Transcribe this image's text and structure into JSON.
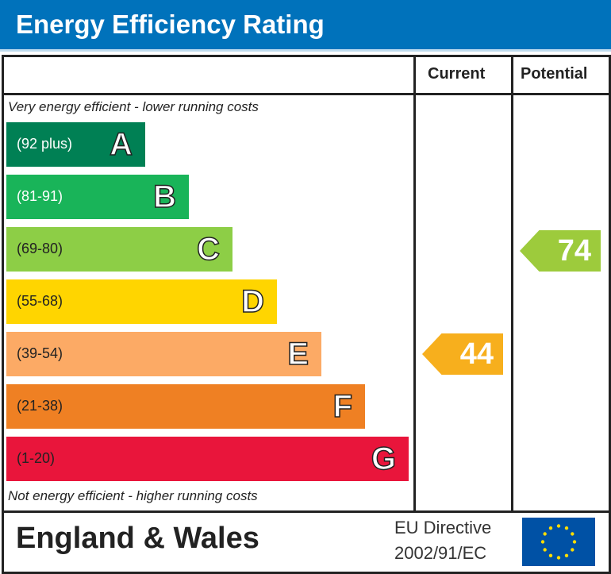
{
  "header": {
    "title": "Energy Efficiency Rating"
  },
  "columns": {
    "current": "Current",
    "potential": "Potential"
  },
  "notes": {
    "top": "Very energy efficient - lower running costs",
    "bottom": "Not energy efficient - higher running costs"
  },
  "footer": {
    "region": "England & Wales",
    "directive_line1": "EU Directive",
    "directive_line2": "2002/91/EC"
  },
  "chart_data": {
    "type": "bar",
    "bands": [
      {
        "letter": "A",
        "range": "(92 plus)",
        "color": "#008054",
        "text_color": "#ffffff"
      },
      {
        "letter": "B",
        "range": "(81-91)",
        "color": "#19b459",
        "text_color": "#ffffff"
      },
      {
        "letter": "C",
        "range": "(69-80)",
        "color": "#8dce46",
        "text_color": "#222222"
      },
      {
        "letter": "D",
        "range": "(55-68)",
        "color": "#ffd500",
        "text_color": "#222222"
      },
      {
        "letter": "E",
        "range": "(39-54)",
        "color": "#fcaa65",
        "text_color": "#222222"
      },
      {
        "letter": "F",
        "range": "(21-38)",
        "color": "#ef8023",
        "text_color": "#222222"
      },
      {
        "letter": "G",
        "range": "(1-20)",
        "color": "#e9153b",
        "text_color": "#222222"
      }
    ],
    "current": {
      "value": 44,
      "band": "E",
      "color": "#f7af1d"
    },
    "potential": {
      "value": 74,
      "band": "C",
      "color": "#9dcb3c"
    }
  }
}
